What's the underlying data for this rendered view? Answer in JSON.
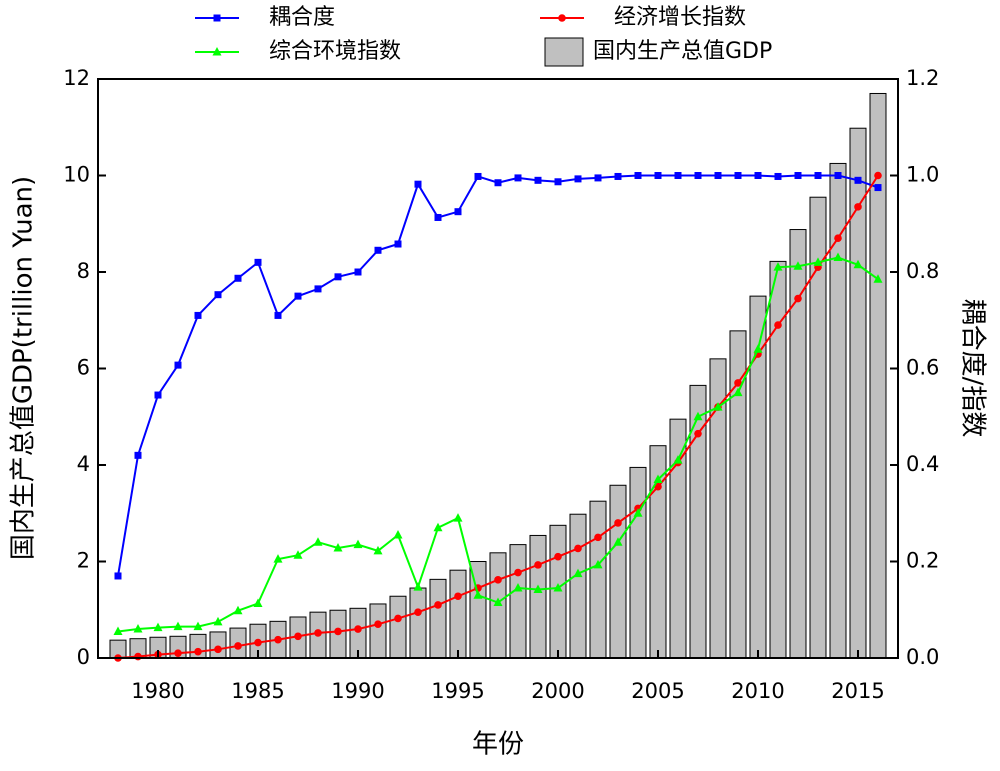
{
  "chart_data": {
    "type": "bar",
    "xlabel": "年份",
    "ylabel": "国内生产总值GDP(trillion Yuan)",
    "y2label": "耦合度/指数",
    "x": [
      1978,
      1979,
      1980,
      1981,
      1982,
      1983,
      1984,
      1985,
      1986,
      1987,
      1988,
      1989,
      1990,
      1991,
      1992,
      1993,
      1994,
      1995,
      1996,
      1997,
      1998,
      1999,
      2000,
      2001,
      2002,
      2003,
      2004,
      2005,
      2006,
      2007,
      2008,
      2009,
      2010,
      2011,
      2012,
      2013,
      2014,
      2015,
      2016
    ],
    "xlim": [
      1977,
      2017
    ],
    "xticks": [
      1980,
      1985,
      1990,
      1995,
      2000,
      2005,
      2010,
      2015
    ],
    "ylim": [
      0,
      12
    ],
    "yticks": [
      0,
      2,
      4,
      6,
      8,
      10,
      12
    ],
    "y2lim": [
      0,
      1.2
    ],
    "y2ticks": [
      {
        "value": 0,
        "label": "0.0"
      },
      {
        "value": 0.2,
        "label": "0.2"
      },
      {
        "value": 0.4,
        "label": "0.4"
      },
      {
        "value": 0.6,
        "label": "0.6"
      },
      {
        "value": 0.8,
        "label": "0.8"
      },
      {
        "value": 1,
        "label": "1.0"
      },
      {
        "value": 1.2,
        "label": "1.2"
      }
    ],
    "series": [
      {
        "name": "耦合度",
        "type": "line",
        "marker": "square",
        "axis": "y2",
        "color": "#0000ff",
        "values": [
          0.17,
          0.42,
          0.545,
          0.607,
          0.71,
          0.753,
          0.787,
          0.82,
          0.71,
          0.75,
          0.765,
          0.79,
          0.8,
          0.845,
          0.858,
          0.982,
          0.913,
          0.925,
          0.998,
          0.985,
          0.995,
          0.99,
          0.987,
          0.993,
          0.995,
          0.998,
          1,
          1,
          1,
          1,
          1,
          1,
          1,
          0.998,
          1,
          1,
          1,
          0.99,
          0.975
        ]
      },
      {
        "name": "经济增长指数",
        "type": "line",
        "marker": "circle",
        "axis": "y2",
        "color": "#ff0000",
        "values": [
          0,
          0.003,
          0.007,
          0.01,
          0.013,
          0.018,
          0.025,
          0.032,
          0.038,
          0.045,
          0.052,
          0.055,
          0.06,
          0.07,
          0.082,
          0.095,
          0.11,
          0.128,
          0.145,
          0.162,
          0.177,
          0.193,
          0.21,
          0.227,
          0.25,
          0.28,
          0.31,
          0.355,
          0.405,
          0.465,
          0.52,
          0.57,
          0.63,
          0.69,
          0.745,
          0.81,
          0.87,
          0.935,
          1
        ]
      },
      {
        "name": "综合环境指数",
        "type": "line",
        "marker": "triangle",
        "axis": "y2",
        "color": "#00ff00",
        "values": [
          0.055,
          0.06,
          0.063,
          0.065,
          0.065,
          0.075,
          0.098,
          0.113,
          0.205,
          0.213,
          0.24,
          0.228,
          0.235,
          0.222,
          0.255,
          0.147,
          0.27,
          0.29,
          0.13,
          0.115,
          0.145,
          0.142,
          0.145,
          0.175,
          0.193,
          0.24,
          0.3,
          0.37,
          0.41,
          0.5,
          0.52,
          0.55,
          0.64,
          0.81,
          0.812,
          0.82,
          0.83,
          0.815,
          0.785
        ]
      },
      {
        "name": "国内生产总值GDP",
        "type": "bar",
        "color": "#c0c0c0",
        "values": [
          0.37,
          0.4,
          0.43,
          0.45,
          0.49,
          0.54,
          0.62,
          0.7,
          0.76,
          0.85,
          0.95,
          0.99,
          1.03,
          1.12,
          1.28,
          1.45,
          1.63,
          1.82,
          2.0,
          2.18,
          2.35,
          2.54,
          2.75,
          2.98,
          3.25,
          3.58,
          3.95,
          4.4,
          4.95,
          5.65,
          6.2,
          6.78,
          7.5,
          8.22,
          8.88,
          9.55,
          10.25,
          10.98,
          11.7
        ]
      }
    ]
  }
}
